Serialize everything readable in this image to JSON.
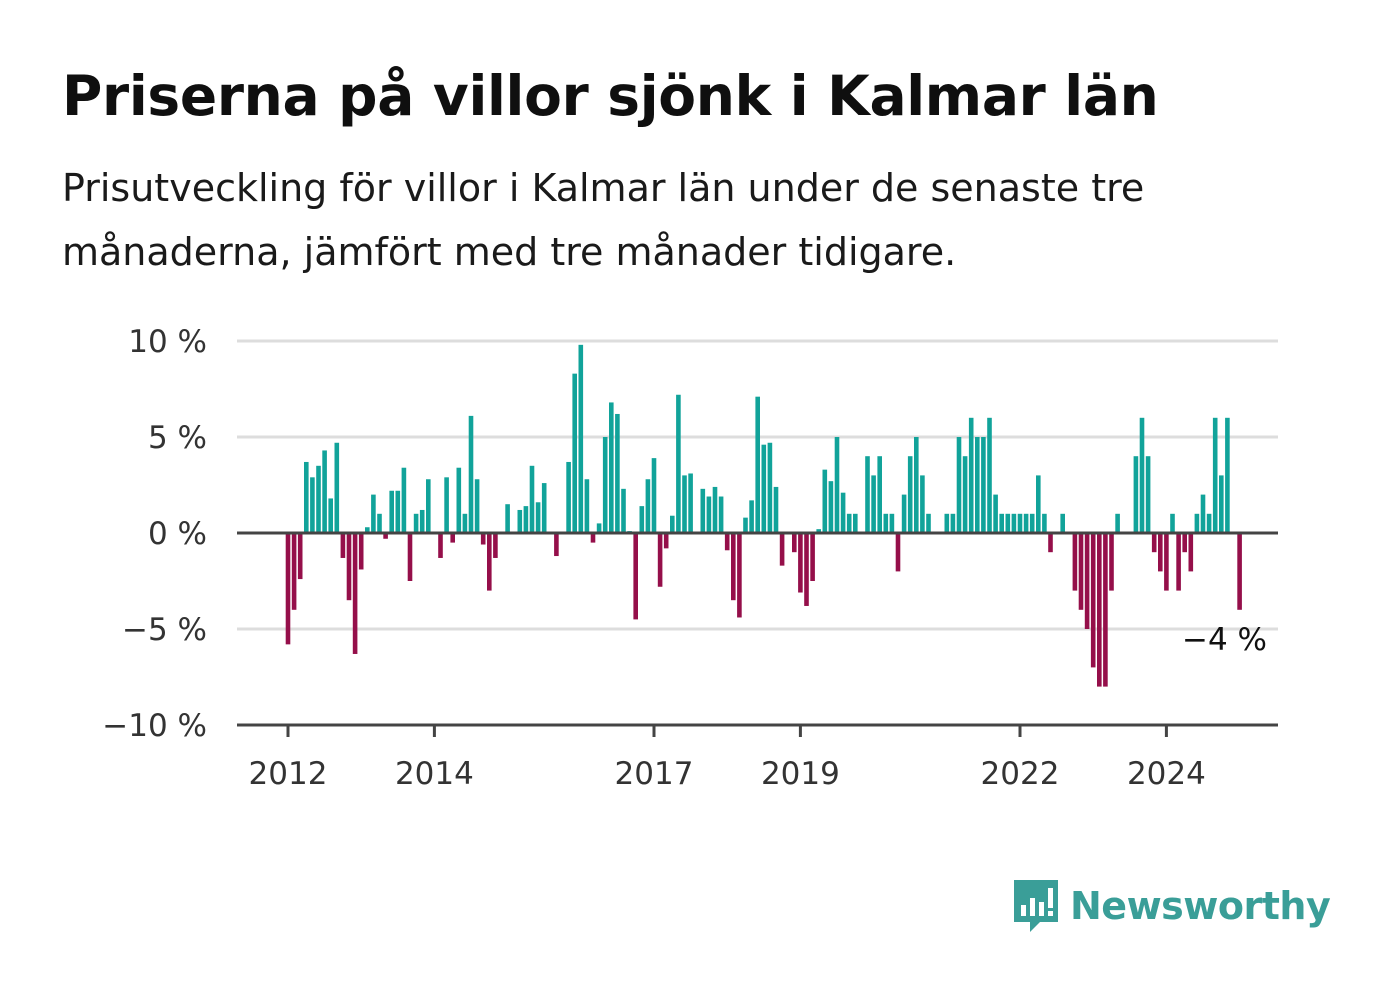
{
  "title": "Priserna på villor sjönk i Kalmar län",
  "subtitle": "Prisutveckling för villor i Kalmar län under de senaste tre månaderna, jämfört med tre månader tidigare.",
  "last_label": "−4 %",
  "brand": {
    "name": "Newsworthy",
    "icon": "bar-chart-speech-bubble-icon",
    "color": "#3a9e98"
  },
  "colors": {
    "positive": "#11a39a",
    "negative": "#950f4a",
    "grid": "#dddddd",
    "baseline": "#444444"
  },
  "chart_data": {
    "type": "bar",
    "title": "Priserna på villor sjönk i Kalmar län",
    "xlabel": "",
    "ylabel": "",
    "ylim": [
      -10,
      10
    ],
    "yticks": [
      {
        "value": 10,
        "label": "10 %"
      },
      {
        "value": 5,
        "label": "5 %"
      },
      {
        "value": 0,
        "label": "0 %"
      },
      {
        "value": -5,
        "label": "−5 %"
      },
      {
        "value": -10,
        "label": "−10 %"
      }
    ],
    "xticks": [
      {
        "value": 2012,
        "label": "2012"
      },
      {
        "value": 2014,
        "label": "2014"
      },
      {
        "value": 2017,
        "label": "2017"
      },
      {
        "value": 2019,
        "label": "2019"
      },
      {
        "value": 2022,
        "label": "2022"
      },
      {
        "value": 2024,
        "label": "2024"
      }
    ],
    "x_start": 2012.0,
    "x_step": 0.0833,
    "grid": true,
    "values": [
      -5.8,
      -4.0,
      -2.4,
      3.7,
      2.9,
      3.5,
      4.3,
      1.8,
      4.7,
      -1.3,
      -3.5,
      -6.3,
      -1.9,
      0.3,
      2.0,
      1.0,
      -0.3,
      2.2,
      2.2,
      3.4,
      -2.5,
      1.0,
      1.2,
      2.8,
      0.0,
      -1.3,
      2.9,
      -0.5,
      3.4,
      1.0,
      6.1,
      2.8,
      -0.6,
      -3.0,
      -1.3,
      0.0,
      1.5,
      0.0,
      1.2,
      1.4,
      3.5,
      1.6,
      2.6,
      0.0,
      -1.2,
      0.0,
      3.7,
      8.3,
      9.8,
      2.8,
      -0.5,
      0.5,
      5.0,
      6.8,
      6.2,
      2.3,
      0.1,
      -4.5,
      1.4,
      2.8,
      3.9,
      -2.8,
      -0.8,
      0.9,
      7.2,
      3.0,
      3.1,
      0.0,
      2.3,
      1.9,
      2.4,
      1.9,
      -0.9,
      -3.5,
      -4.4,
      0.8,
      1.7,
      7.1,
      4.6,
      4.7,
      2.4,
      -1.7,
      0.0,
      -1.0,
      -3.1,
      -3.8,
      -2.5,
      0.2,
      3.3,
      2.7,
      5.0,
      2.1,
      1.0,
      1.0,
      0.0,
      4.0,
      3.0,
      4.0,
      1.0,
      1.0,
      -2.0,
      2.0,
      4.0,
      5.0,
      3.0,
      1.0,
      0.0,
      0.0,
      1.0,
      1.0,
      5.0,
      4.0,
      6.0,
      5.0,
      5.0,
      6.0,
      2.0,
      1.0,
      1.0,
      1.0,
      1.0,
      1.0,
      1.0,
      3.0,
      1.0,
      -1.0,
      0.0,
      1.0,
      0.0,
      -3.0,
      -4.0,
      -5.0,
      -7.0,
      -8.0,
      -8.0,
      -3.0,
      1.0,
      0.0,
      0.0,
      4.0,
      6.0,
      4.0,
      -1.0,
      -2.0,
      -3.0,
      1.0,
      -3.0,
      -1.0,
      -2.0,
      1.0,
      2.0,
      1.0,
      6.0,
      3.0,
      6.0,
      0.0,
      -4.0
    ]
  }
}
